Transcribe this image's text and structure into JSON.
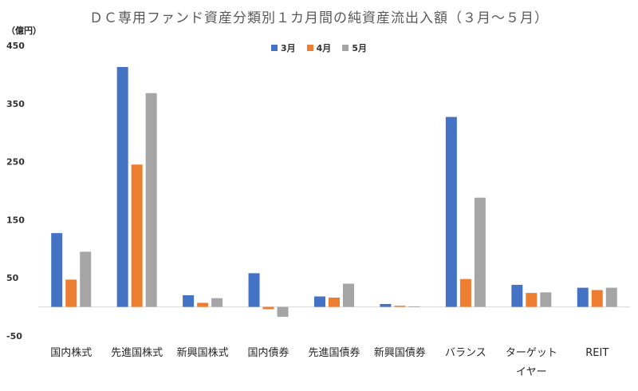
{
  "chart_data": {
    "type": "bar",
    "title": "ＤＣ専用ファンド資産分類別１カ月間の純資産流出入額（３月～５月）",
    "unit_label": "（億円）",
    "categories": [
      "国内株式",
      "先進国株式",
      "新興国株式",
      "国内債券",
      "先進国債券",
      "新興国債券",
      "バランス",
      "ターゲットイヤー",
      "REIT"
    ],
    "category_lines": [
      [
        "国内株式"
      ],
      [
        "先進国株式"
      ],
      [
        "新興国株式"
      ],
      [
        "国内債券"
      ],
      [
        "先進国債券"
      ],
      [
        "新興国債券"
      ],
      [
        "バランス"
      ],
      [
        "ターゲット",
        "イヤー"
      ],
      [
        "REIT"
      ]
    ],
    "series": [
      {
        "name": "3月",
        "color": "#4472C4",
        "values": [
          127,
          413,
          20,
          58,
          18,
          5,
          327,
          38,
          33
        ]
      },
      {
        "name": "4月",
        "color": "#ED7D31",
        "values": [
          47,
          245,
          7,
          -4,
          16,
          2,
          48,
          24,
          29
        ]
      },
      {
        "name": "5月",
        "color": "#A5A5A5",
        "values": [
          95,
          368,
          15,
          -17,
          40,
          1,
          188,
          25,
          33
        ]
      }
    ],
    "ylim": [
      -50,
      450
    ],
    "yticks": [
      -50,
      50,
      150,
      250,
      350,
      450
    ],
    "grid": false,
    "legend_position": "top-center"
  }
}
